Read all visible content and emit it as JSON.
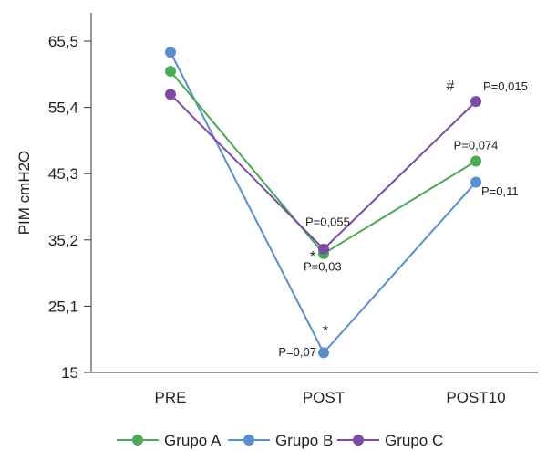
{
  "chart_data": {
    "type": "line",
    "title": "",
    "xlabel": "",
    "ylabel": "PIM cmH2O",
    "categories": [
      "PRE",
      "POST",
      "POST10"
    ],
    "y_ticks": [
      "65,5",
      "55,4",
      "45,3",
      "35,2",
      "25,1",
      "15"
    ],
    "ylim": [
      15,
      65.5
    ],
    "grid": false,
    "legend_position": "bottom",
    "series": [
      {
        "name": "Grupo A",
        "color": "#4aaa5a",
        "values": [
          60.9,
          33.1,
          47.2
        ]
      },
      {
        "name": "Grupo B",
        "color": "#5b8ecf",
        "values": [
          63.8,
          18.0,
          44.0
        ]
      },
      {
        "name": "Grupo C",
        "color": "#7b4ba6",
        "values": [
          57.4,
          33.8,
          56.3
        ]
      }
    ],
    "annotations": [
      {
        "text": "P=0,055",
        "cat": 1,
        "y": 37.3,
        "anchor": "start",
        "dx": -20,
        "cls": "ann"
      },
      {
        "text": "*",
        "cat": 1,
        "y": 32.0,
        "anchor": "middle",
        "dx": -12,
        "cls": "ann-sym"
      },
      {
        "text": "P=0,03",
        "cat": 1,
        "y": 30.5,
        "anchor": "start",
        "dx": -22,
        "cls": "ann"
      },
      {
        "text": "*",
        "cat": 1,
        "y": 20.6,
        "anchor": "middle",
        "dx": 2,
        "cls": "ann-sym"
      },
      {
        "text": "P=0,07",
        "cat": 1,
        "y": 17.5,
        "anchor": "end",
        "dx": -8,
        "cls": "ann"
      },
      {
        "text": "#",
        "cat": 2,
        "y": 58.0,
        "anchor": "middle",
        "dx": -28,
        "cls": "ann-sym"
      },
      {
        "text": "P=0,015",
        "cat": 2,
        "y": 58.0,
        "anchor": "start",
        "dx": 8,
        "cls": "ann"
      },
      {
        "text": "P=0,074",
        "cat": 2,
        "y": 49.0,
        "anchor": "middle",
        "dx": 0,
        "cls": "ann"
      },
      {
        "text": "P=0,11",
        "cat": 2,
        "y": 42.0,
        "anchor": "start",
        "dx": 6,
        "cls": "ann"
      }
    ]
  }
}
